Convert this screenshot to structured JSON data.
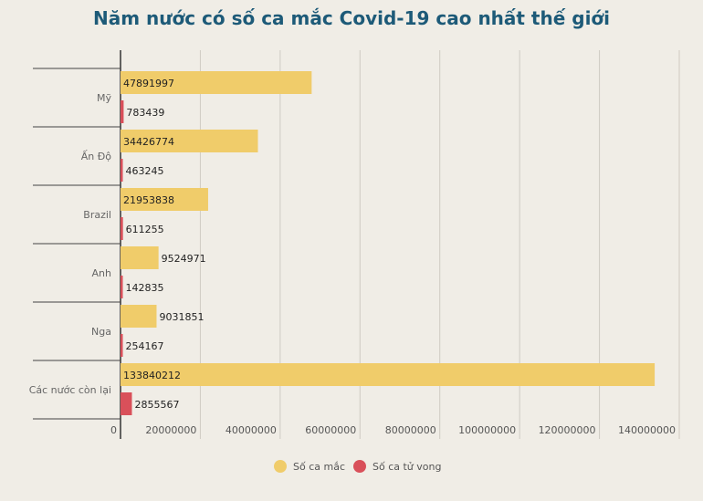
{
  "chart_data": {
    "type": "bar",
    "orientation": "horizontal",
    "title": "Năm nước có số ca mắc Covid-19 cao nhất thế giới",
    "categories": [
      "Mỹ",
      "Ấn Độ",
      "Brazil",
      "Anh",
      "Nga",
      "Các nước còn lại"
    ],
    "series": [
      {
        "name": "Số ca mắc",
        "color": "#f0cc6a",
        "values": [
          47891997,
          34426774,
          21953838,
          9524971,
          9031851,
          133840212
        ]
      },
      {
        "name": "Số ca tử vong",
        "color": "#d9505a",
        "values": [
          783439,
          463245,
          611255,
          142835,
          254167,
          2855567
        ]
      }
    ],
    "xlim": [
      0,
      140000000
    ],
    "xticks": [
      "0",
      "20000000",
      "40000000",
      "60000000",
      "80000000",
      "100000000",
      "120000000",
      "140000000"
    ],
    "grid": true,
    "legend": "bottom"
  }
}
